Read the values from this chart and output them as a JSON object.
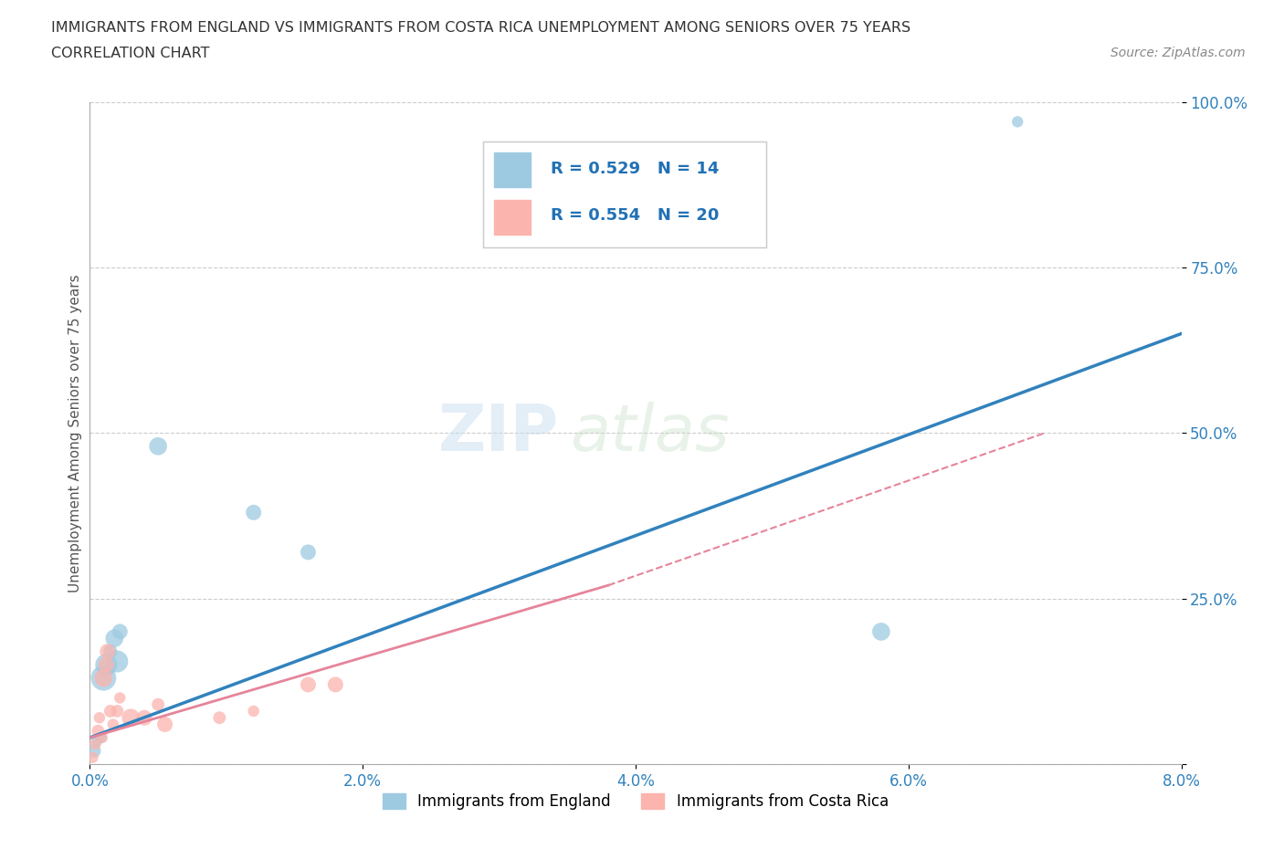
{
  "title_line1": "IMMIGRANTS FROM ENGLAND VS IMMIGRANTS FROM COSTA RICA UNEMPLOYMENT AMONG SENIORS OVER 75 YEARS",
  "title_line2": "CORRELATION CHART",
  "source_text": "Source: ZipAtlas.com",
  "ylabel": "Unemployment Among Seniors over 75 years",
  "legend_label_england": "Immigrants from England",
  "legend_label_costarica": "Immigrants from Costa Rica",
  "R_england": 0.529,
  "N_england": 14,
  "R_costarica": 0.554,
  "N_costarica": 20,
  "england_color": "#9ecae1",
  "costarica_color": "#fbb4ae",
  "england_line_color": "#3182bd",
  "costarica_line_color": "#e6849a",
  "watermark_zip": "ZIP",
  "watermark_atlas": "atlas",
  "xlim": [
    0.0,
    0.08
  ],
  "ylim": [
    0.0,
    1.0
  ],
  "xticks": [
    0.0,
    0.02,
    0.04,
    0.06,
    0.08
  ],
  "yticks": [
    0.0,
    0.25,
    0.5,
    0.75,
    1.0
  ],
  "xticklabels": [
    "0.0%",
    "2.0%",
    "4.0%",
    "6.0%",
    "8.0%"
  ],
  "yticklabels": [
    "",
    "25.0%",
    "50.0%",
    "75.0%",
    "100.0%"
  ],
  "england_x": [
    0.0003,
    0.0005,
    0.0008,
    0.001,
    0.0012,
    0.0015,
    0.0018,
    0.002,
    0.0022,
    0.005,
    0.012,
    0.016,
    0.058,
    0.068
  ],
  "england_y": [
    0.02,
    0.035,
    0.04,
    0.13,
    0.15,
    0.17,
    0.19,
    0.155,
    0.2,
    0.48,
    0.38,
    0.32,
    0.2,
    0.97
  ],
  "england_size": [
    120,
    80,
    80,
    400,
    300,
    120,
    200,
    300,
    150,
    200,
    150,
    150,
    200,
    80
  ],
  "costarica_x": [
    0.0002,
    0.0004,
    0.0006,
    0.0007,
    0.0009,
    0.001,
    0.0012,
    0.0013,
    0.0015,
    0.0017,
    0.002,
    0.0022,
    0.003,
    0.004,
    0.005,
    0.0055,
    0.0095,
    0.012,
    0.016,
    0.018
  ],
  "costarica_y": [
    0.01,
    0.03,
    0.05,
    0.07,
    0.04,
    0.13,
    0.15,
    0.17,
    0.08,
    0.06,
    0.08,
    0.1,
    0.07,
    0.07,
    0.09,
    0.06,
    0.07,
    0.08,
    0.12,
    0.12
  ],
  "costarica_size": [
    80,
    80,
    100,
    80,
    80,
    200,
    150,
    150,
    100,
    80,
    100,
    80,
    200,
    150,
    100,
    150,
    100,
    80,
    150,
    150
  ],
  "eng_line_x0": 0.0,
  "eng_line_y0": 0.04,
  "eng_line_x1": 0.08,
  "eng_line_y1": 0.65,
  "cr_line_x0": 0.0,
  "cr_line_y0": 0.04,
  "cr_line_x1": 0.07,
  "cr_line_y1": 0.5
}
